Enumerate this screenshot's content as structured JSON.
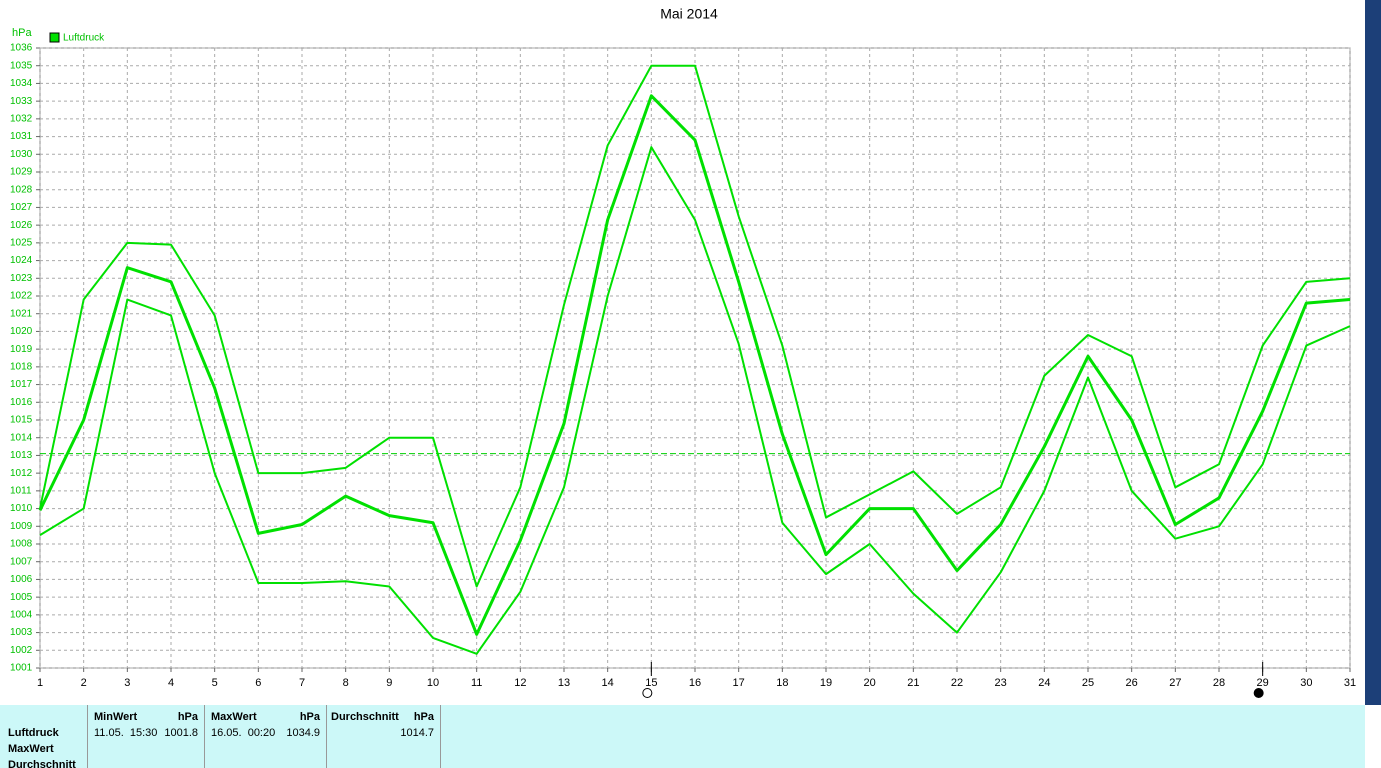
{
  "chart_data": {
    "type": "line",
    "title": "Mai 2014",
    "y_unit": "hPa",
    "x": [
      1,
      2,
      3,
      4,
      5,
      6,
      7,
      8,
      9,
      10,
      11,
      12,
      13,
      14,
      15,
      16,
      17,
      18,
      19,
      20,
      21,
      22,
      23,
      24,
      25,
      26,
      27,
      28,
      29,
      30,
      31
    ],
    "xlim": [
      1,
      31
    ],
    "xticks": [
      1,
      2,
      3,
      4,
      5,
      6,
      7,
      8,
      9,
      10,
      11,
      12,
      13,
      14,
      15,
      16,
      17,
      18,
      19,
      20,
      21,
      22,
      23,
      24,
      25,
      26,
      27,
      28,
      29,
      30,
      31
    ],
    "ylim": [
      1001,
      1036
    ],
    "yticks": [
      1001,
      1002,
      1003,
      1004,
      1005,
      1006,
      1007,
      1008,
      1009,
      1010,
      1011,
      1012,
      1013,
      1014,
      1015,
      1016,
      1017,
      1018,
      1019,
      1020,
      1021,
      1022,
      1023,
      1024,
      1025,
      1026,
      1027,
      1028,
      1029,
      1030,
      1031,
      1032,
      1033,
      1034,
      1035,
      1036
    ],
    "grid": true,
    "legend": "top-left",
    "series": [
      {
        "name": "Luftdruck",
        "color": "#00e000",
        "width": 3,
        "values": [
          1009.9,
          1015,
          1023.6,
          1022.8,
          1016.8,
          1008.6,
          1009.1,
          1010.7,
          1009.6,
          1009.2,
          1002.9,
          1008.2,
          1014.8,
          1026.3,
          1033.3,
          1030.8,
          1022.8,
          1014.2,
          1007.4,
          1010,
          1010,
          1006.5,
          1009.1,
          1013.5,
          1018.6,
          1015,
          1009.1,
          1010.6,
          1015.5,
          1021.6,
          1021.8
        ]
      },
      {
        "color": "#00e000",
        "width": 2,
        "values": [
          1010,
          1021.8,
          1025,
          1024.9,
          1020.9,
          1012,
          1012,
          1012.3,
          1014,
          1014,
          1005.6,
          1011.2,
          1021.5,
          1030.5,
          1035,
          1035,
          1026.5,
          1019.2,
          1009.5,
          1010.8,
          1012.1,
          1009.7,
          1011.2,
          1017.5,
          1019.8,
          1018.6,
          1011.2,
          1012.5,
          1019.2,
          1022.8,
          1023
        ]
      },
      {
        "color": "#00e000",
        "width": 2,
        "values": [
          1008.5,
          1010,
          1021.8,
          1020.9,
          1012,
          1005.8,
          1005.8,
          1005.9,
          1005.6,
          1002.7,
          1001.8,
          1005.3,
          1011.2,
          1022,
          1030.4,
          1026.3,
          1019.3,
          1009.2,
          1006.3,
          1008,
          1005.2,
          1003,
          1006.4,
          1011,
          1017.4,
          1011,
          1008.3,
          1009,
          1012.5,
          1019.2,
          1020.3
        ]
      }
    ],
    "reference_line": 1013.1,
    "moon_markers": [
      {
        "day": 15,
        "style": "open"
      },
      {
        "day": 29,
        "style": "filled"
      }
    ]
  },
  "stats_table": {
    "row_labels": [
      "Luftdruck",
      "MaxWert",
      "Durchschnitt"
    ],
    "columns": [
      {
        "header": "MinWert",
        "unit": "hPa",
        "time": "11.05.  15:30",
        "value": "1001.8"
      },
      {
        "header": "MaxWert",
        "unit": "hPa",
        "time": "16.05.  00:20",
        "value": "1034.9"
      },
      {
        "header": "Durchschnitt",
        "unit": "hPa",
        "time": "",
        "value": "1014.7"
      }
    ]
  }
}
